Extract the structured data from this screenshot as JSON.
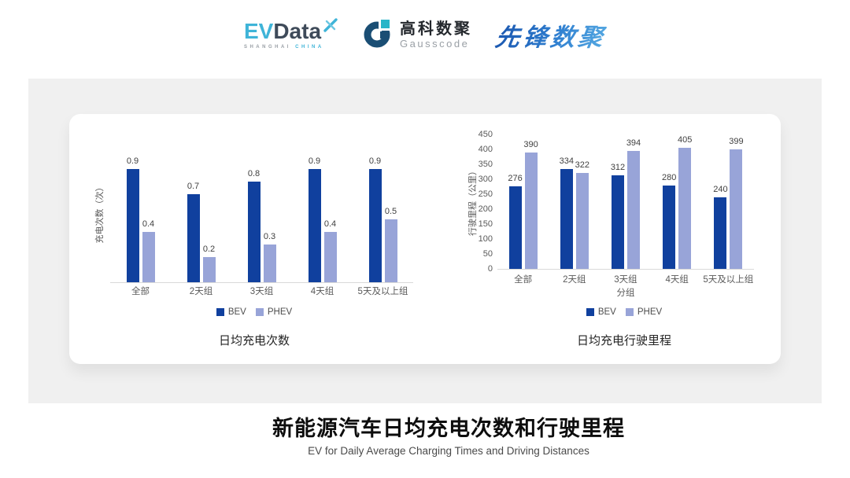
{
  "header": {
    "evdata": {
      "ev": "EV",
      "data": "Data",
      "sub_left": "SHANGHAI",
      "sub_right": "CHINA"
    },
    "gausscode": {
      "name_cn": "高科数聚",
      "name_en": "Gausscode"
    },
    "pioneer": {
      "name": "先锋数聚"
    }
  },
  "icons": {
    "evdata_spark": "four-point-spark-x",
    "gausscode_mark": "g-circle-mark"
  },
  "colors": {
    "bev": "#10409e",
    "phev": "#98a4d8",
    "panel_gray": "#f0f0f0",
    "axis_line": "#d9d9d9",
    "data_label": "#404040",
    "axis_text": "#595959",
    "evdata_blue": "#3fb4d8",
    "evdata_dark": "#3e4a59",
    "gauss_dark": "#1a4e74",
    "gauss_teal": "#28b5c8",
    "pioneer_blue_start": "#1a55ae",
    "pioneer_blue_end": "#55a9e2"
  },
  "chart_data": [
    {
      "type": "bar",
      "title": "日均充电次数",
      "categories": [
        "全部",
        "2天组",
        "3天组",
        "4天组",
        "5天及以上组"
      ],
      "series": [
        {
          "name": "BEV",
          "color": "#10409e",
          "values": [
            0.9,
            0.7,
            0.8,
            0.9,
            0.9
          ]
        },
        {
          "name": "PHEV",
          "color": "#98a4d8",
          "values": [
            0.4,
            0.2,
            0.3,
            0.4,
            0.5
          ]
        }
      ],
      "xlabel": "",
      "ylabel": "充电次数（次）",
      "ylim": [
        0,
        1.1
      ],
      "yticks": [],
      "grid": false,
      "legend_position": "bottom",
      "data_labels": true
    },
    {
      "type": "bar",
      "title": "日均充电行驶里程",
      "categories": [
        "全部",
        "2天组",
        "3天组",
        "4天组",
        "5天及以上组"
      ],
      "series": [
        {
          "name": "BEV",
          "color": "#10409e",
          "values": [
            276,
            334,
            312,
            280,
            240
          ]
        },
        {
          "name": "PHEV",
          "color": "#98a4d8",
          "values": [
            390,
            322,
            394,
            405,
            399
          ]
        }
      ],
      "xlabel": "分组",
      "ylabel": "行驶里程（公里）",
      "ylim": [
        0,
        450
      ],
      "yticks": [
        0,
        50,
        100,
        150,
        200,
        250,
        300,
        350,
        400,
        450
      ],
      "grid": false,
      "legend_position": "bottom",
      "data_labels": true
    }
  ],
  "footer": {
    "title": "新能源汽车日均充电次数和行驶里程",
    "subtitle": "EV for Daily Average Charging Times and Driving Distances"
  }
}
